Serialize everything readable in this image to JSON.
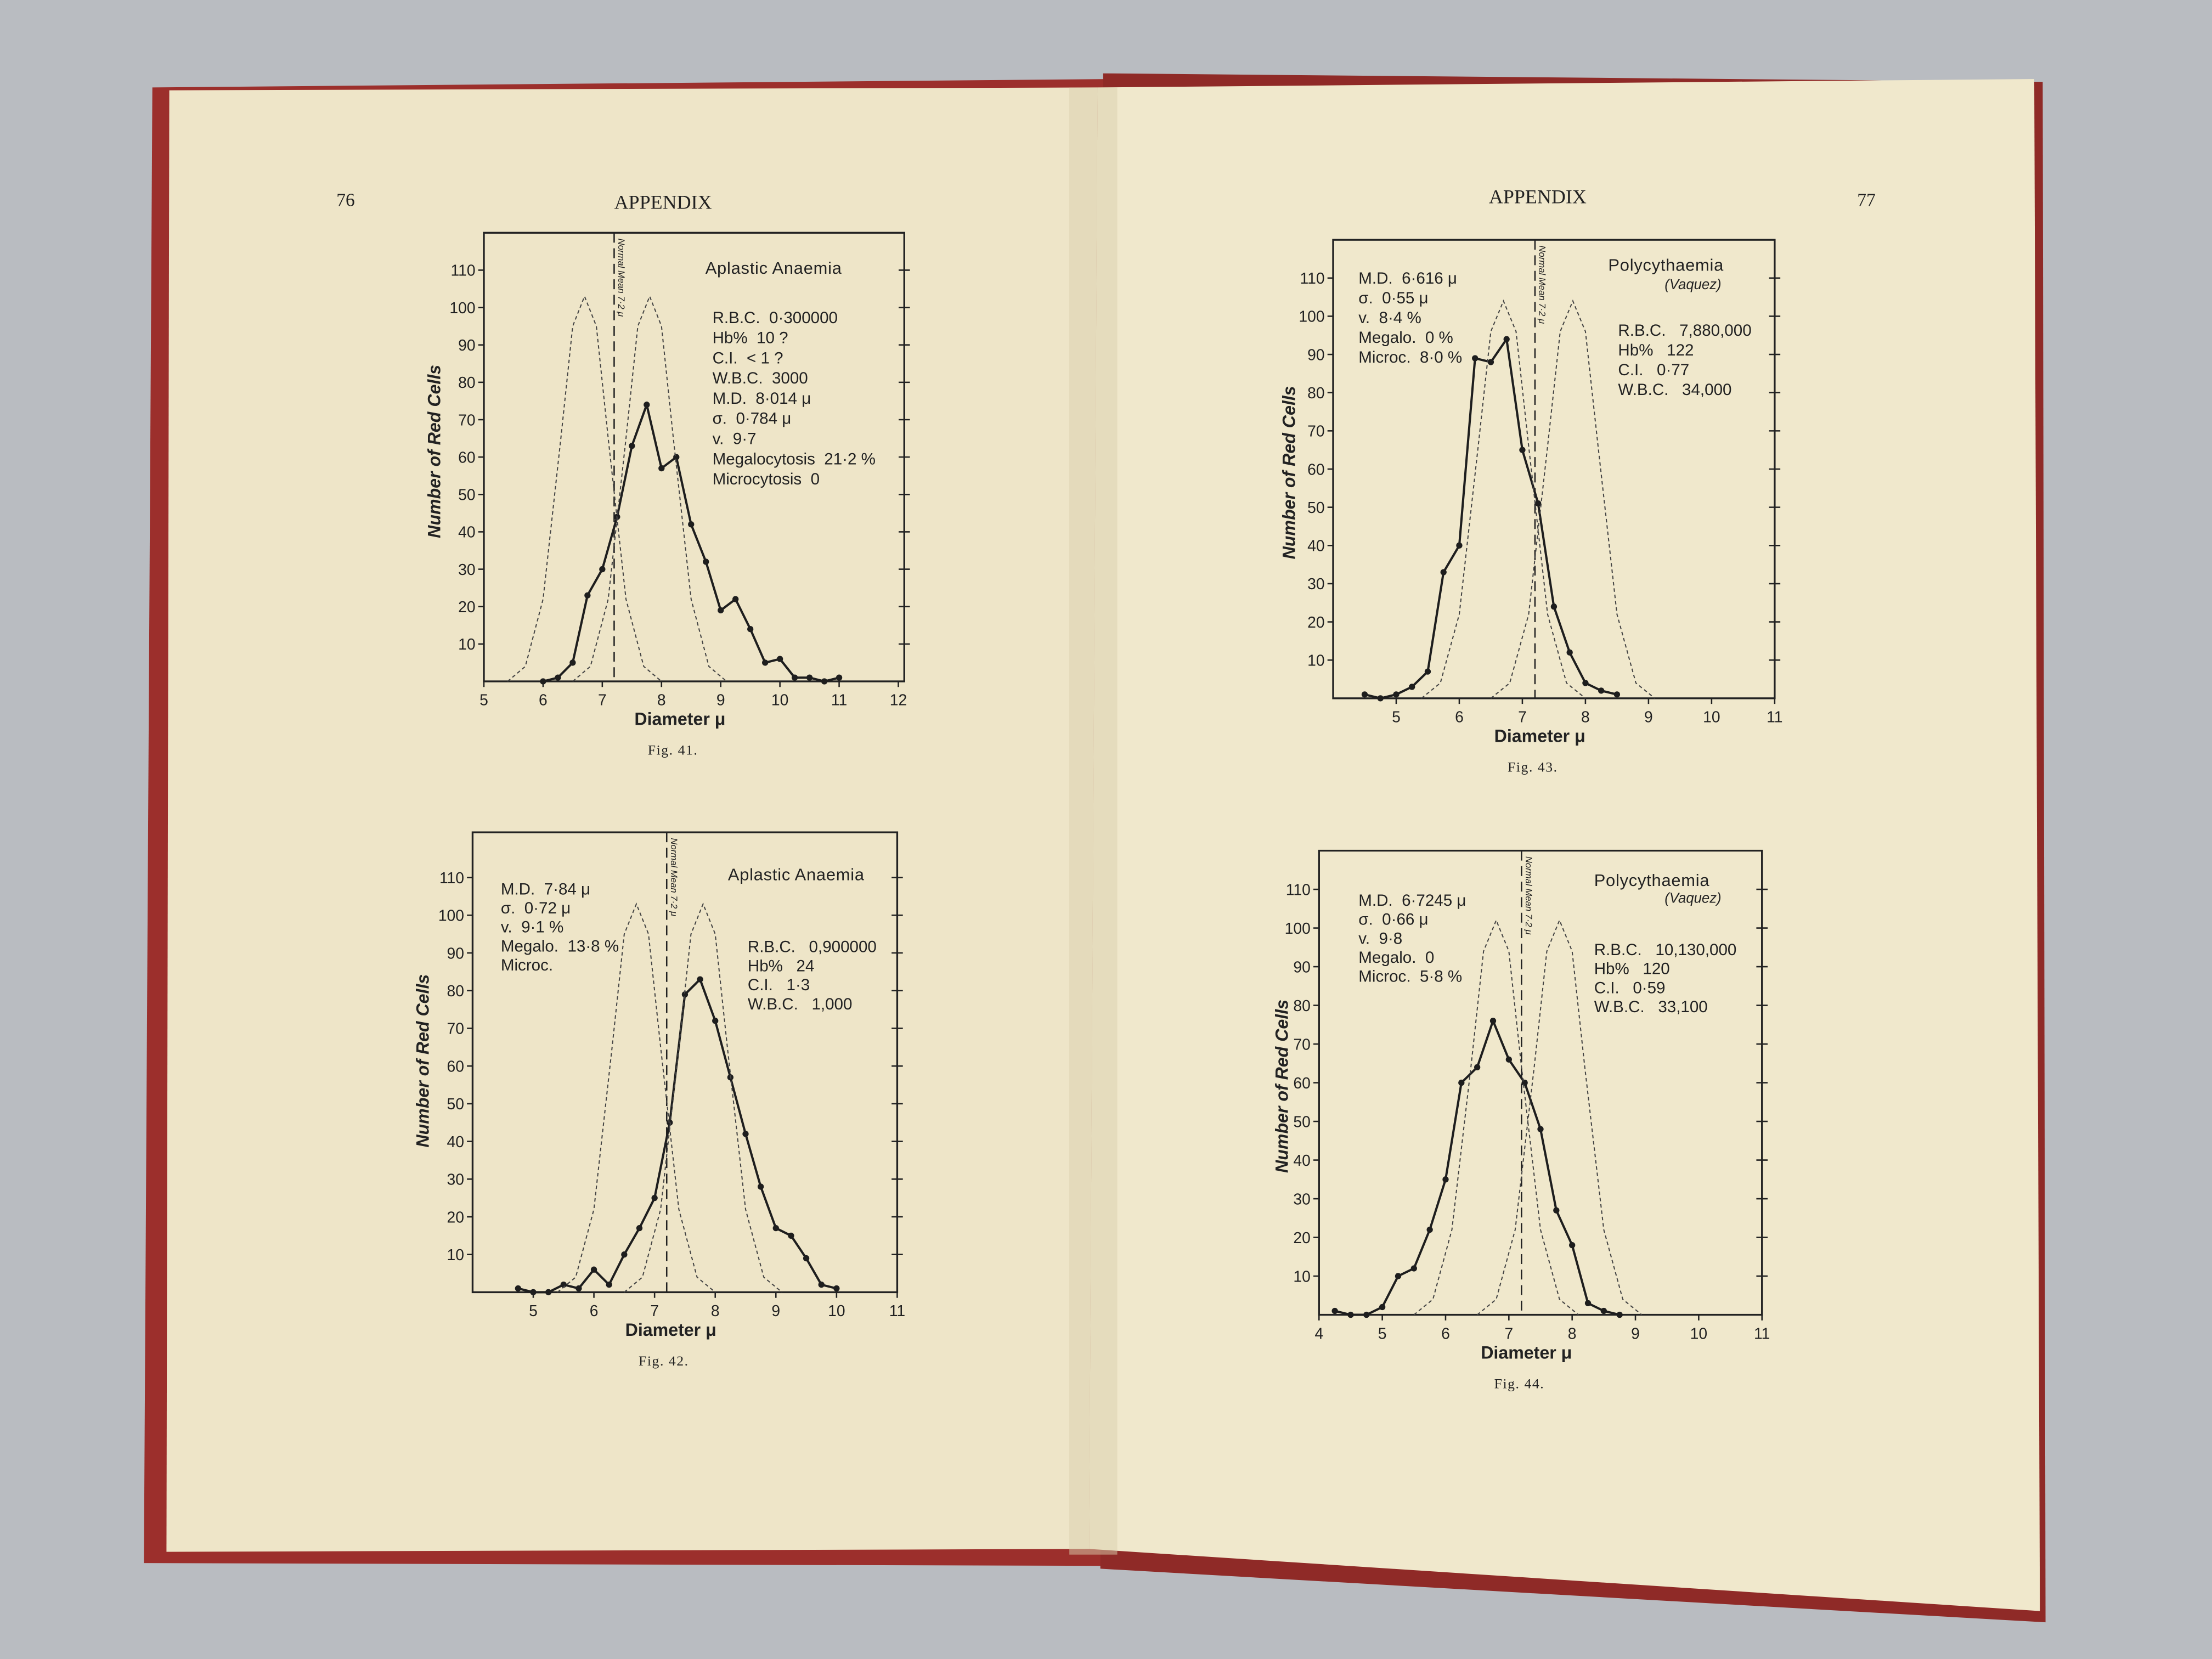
{
  "pages": [
    {
      "number": "76",
      "header": "APPENDIX"
    },
    {
      "header": "APPENDIX",
      "number": "77"
    }
  ],
  "chart_data": [
    {
      "type": "line",
      "title": "Aplastic Anaemia",
      "caption": "Fig. 41.",
      "x_label": "Diameter μ",
      "y_label": "Number of Red Cells",
      "reference_x": 7.2,
      "reference_label": "Normal Mean 7·2 μ",
      "notes": [
        [
          "R.B.C.  0·300000",
          "Hb%  10 ?",
          "C.I.  < 1 ?",
          "W.B.C.  3000",
          "M.D.  8·014 μ",
          "σ.  0·784 μ",
          "v.  9·7",
          "Megalocytosis  21·2 %",
          "Microcytosis  0"
        ]
      ],
      "xlim": [
        5,
        12.1
      ],
      "xticks": [
        5,
        6,
        7,
        8,
        9,
        10,
        11,
        12
      ],
      "ylim": [
        0,
        120
      ],
      "yticks": [
        10,
        20,
        30,
        40,
        50,
        60,
        70,
        80,
        90,
        100,
        110
      ],
      "series": [
        {
          "style": "solid",
          "color": "#1e1e1e",
          "x": [
            6.0,
            6.25,
            6.5,
            6.75,
            7.0,
            7.25,
            7.5,
            7.75,
            8.0,
            8.25,
            8.5,
            8.75,
            9.0,
            9.25,
            9.5,
            9.75,
            10.0,
            10.25,
            10.5,
            10.75,
            11.0
          ],
          "values": [
            0,
            1,
            5,
            23,
            30,
            44,
            63,
            74,
            57,
            60,
            42,
            32,
            19,
            22,
            14,
            5,
            6,
            1,
            1,
            0,
            1
          ]
        },
        {
          "style": "dashed",
          "color": "#444",
          "x": [
            5.4,
            5.7,
            6.0,
            6.3,
            6.5,
            6.7,
            6.9,
            7.1,
            7.4,
            7.7,
            8.0
          ],
          "values": [
            0,
            4,
            22,
            65,
            95,
            103,
            95,
            65,
            22,
            4,
            0
          ]
        },
        {
          "style": "dashed",
          "color": "#444",
          "x": [
            6.5,
            6.8,
            7.1,
            7.4,
            7.6,
            7.8,
            8.0,
            8.2,
            8.5,
            8.8,
            9.1
          ],
          "values": [
            0,
            4,
            22,
            65,
            95,
            103,
            95,
            65,
            22,
            4,
            0
          ]
        }
      ]
    },
    {
      "type": "line",
      "title": "Aplastic Anaemia",
      "caption": "Fig. 42.",
      "x_label": "Diameter μ",
      "y_label": "Number of Red Cells",
      "reference_x": 7.2,
      "reference_label": "Normal Mean 7·2 μ",
      "notes": [
        [
          "M.D.  7·84 μ",
          "σ.  0·72 μ",
          "v.  9·1 %",
          "Megalo.  13·8 %",
          "Microc."
        ],
        [
          "R.B.C.   0,900000",
          "Hb%   24",
          "C.I.   1·3",
          "W.B.C.   1,000"
        ]
      ],
      "xlim": [
        4,
        11
      ],
      "xticks": [
        5,
        6,
        7,
        8,
        9,
        10,
        11
      ],
      "ylim": [
        0,
        122
      ],
      "yticks": [
        10,
        20,
        30,
        40,
        50,
        60,
        70,
        80,
        90,
        100,
        110
      ],
      "series": [
        {
          "style": "solid",
          "color": "#1e1e1e",
          "x": [
            4.75,
            5.0,
            5.25,
            5.5,
            5.75,
            6.0,
            6.25,
            6.5,
            6.75,
            7.0,
            7.25,
            7.5,
            7.75,
            8.0,
            8.25,
            8.5,
            8.75,
            9.0,
            9.25,
            9.5,
            9.75,
            10.0
          ],
          "values": [
            1,
            0,
            0,
            2,
            1,
            6,
            2,
            10,
            17,
            25,
            45,
            79,
            83,
            72,
            57,
            42,
            28,
            17,
            15,
            9,
            2,
            1
          ]
        },
        {
          "style": "dashed",
          "color": "#444",
          "x": [
            5.4,
            5.7,
            6.0,
            6.3,
            6.5,
            6.7,
            6.9,
            7.1,
            7.4,
            7.7,
            8.0
          ],
          "values": [
            0,
            4,
            22,
            65,
            95,
            103,
            95,
            65,
            22,
            4,
            0
          ]
        },
        {
          "style": "dashed",
          "color": "#444",
          "x": [
            6.5,
            6.8,
            7.1,
            7.4,
            7.6,
            7.8,
            8.0,
            8.2,
            8.5,
            8.8,
            9.1
          ],
          "values": [
            0,
            4,
            22,
            65,
            95,
            103,
            95,
            65,
            22,
            4,
            0
          ]
        }
      ]
    },
    {
      "type": "line",
      "title": "Polycythaemia",
      "subtitle": "(Vaquez)",
      "caption": "Fig. 43.",
      "x_label": "Diameter μ",
      "y_label": "Number of Red Cells",
      "reference_x": 7.2,
      "reference_label": "Normal Mean 7·2 μ",
      "notes": [
        [
          "M.D.  6·616 μ",
          "σ.  0·55 μ",
          "v.  8·4 %",
          "Megalo.  0 %",
          "Microc.  8·0 %"
        ],
        [
          "R.B.C.   7,880,000",
          "Hb%   122",
          "C.I.   0·77",
          "W.B.C.   34,000"
        ]
      ],
      "xlim": [
        4,
        11
      ],
      "xticks": [
        5,
        6,
        7,
        8,
        9,
        10,
        11
      ],
      "ylim": [
        0,
        120
      ],
      "yticks": [
        10,
        20,
        30,
        40,
        50,
        60,
        70,
        80,
        90,
        100,
        110
      ],
      "series": [
        {
          "style": "solid",
          "color": "#1e1e1e",
          "x": [
            4.5,
            4.75,
            5.0,
            5.25,
            5.5,
            5.75,
            6.0,
            6.25,
            6.5,
            6.75,
            7.0,
            7.25,
            7.5,
            7.75,
            8.0,
            8.25,
            8.5
          ],
          "values": [
            1,
            0,
            1,
            3,
            7,
            33,
            40,
            89,
            88,
            94,
            65,
            51,
            24,
            12,
            4,
            2,
            1
          ]
        },
        {
          "style": "dashed",
          "color": "#444",
          "x": [
            5.4,
            5.7,
            6.0,
            6.3,
            6.5,
            6.7,
            6.9,
            7.1,
            7.4,
            7.7,
            8.0
          ],
          "values": [
            0,
            4,
            22,
            66,
            96,
            104,
            96,
            66,
            22,
            4,
            0
          ]
        },
        {
          "style": "dashed",
          "color": "#444",
          "x": [
            6.5,
            6.8,
            7.1,
            7.4,
            7.6,
            7.8,
            8.0,
            8.2,
            8.5,
            8.8,
            9.1
          ],
          "values": [
            0,
            4,
            22,
            66,
            96,
            104,
            96,
            66,
            22,
            4,
            0
          ]
        }
      ]
    },
    {
      "type": "line",
      "title": "Polycythaemia",
      "subtitle": "(Vaquez)",
      "caption": "Fig. 44.",
      "x_label": "Diameter μ",
      "y_label": "Number of Red Cells",
      "reference_x": 7.2,
      "reference_label": "Normal Mean 7·2 μ",
      "notes": [
        [
          "M.D.  6·7245 μ",
          "σ.  0·66 μ",
          "v.  9·8",
          "Megalo.  0",
          "Microc.  5·8 %"
        ],
        [
          "R.B.C.   10,130,000",
          "Hb%   120",
          "C.I.   0·59",
          "W.B.C.   33,100"
        ]
      ],
      "xlim": [
        4,
        11
      ],
      "xticks": [
        4,
        5,
        6,
        7,
        8,
        9,
        10,
        11
      ],
      "ylim": [
        0,
        120
      ],
      "yticks": [
        10,
        20,
        30,
        40,
        50,
        60,
        70,
        80,
        90,
        100,
        110
      ],
      "series": [
        {
          "style": "solid",
          "color": "#1e1e1e",
          "x": [
            4.25,
            4.5,
            4.75,
            5.0,
            5.25,
            5.5,
            5.75,
            6.0,
            6.25,
            6.5,
            6.75,
            7.0,
            7.25,
            7.5,
            7.75,
            8.0,
            8.25,
            8.5,
            8.75
          ],
          "values": [
            1,
            0,
            0,
            2,
            10,
            12,
            22,
            35,
            60,
            64,
            76,
            66,
            60,
            48,
            27,
            18,
            3,
            1,
            0
          ]
        },
        {
          "style": "dashed",
          "color": "#444",
          "x": [
            5.5,
            5.8,
            6.1,
            6.4,
            6.6,
            6.8,
            7.0,
            7.2,
            7.5,
            7.8,
            8.1
          ],
          "values": [
            0,
            4,
            22,
            64,
            94,
            102,
            94,
            64,
            22,
            4,
            0
          ]
        },
        {
          "style": "dashed",
          "color": "#444",
          "x": [
            6.5,
            6.8,
            7.1,
            7.4,
            7.6,
            7.8,
            8.0,
            8.2,
            8.5,
            8.8,
            9.1
          ],
          "values": [
            0,
            4,
            22,
            64,
            94,
            102,
            94,
            64,
            22,
            4,
            0
          ]
        }
      ]
    }
  ]
}
